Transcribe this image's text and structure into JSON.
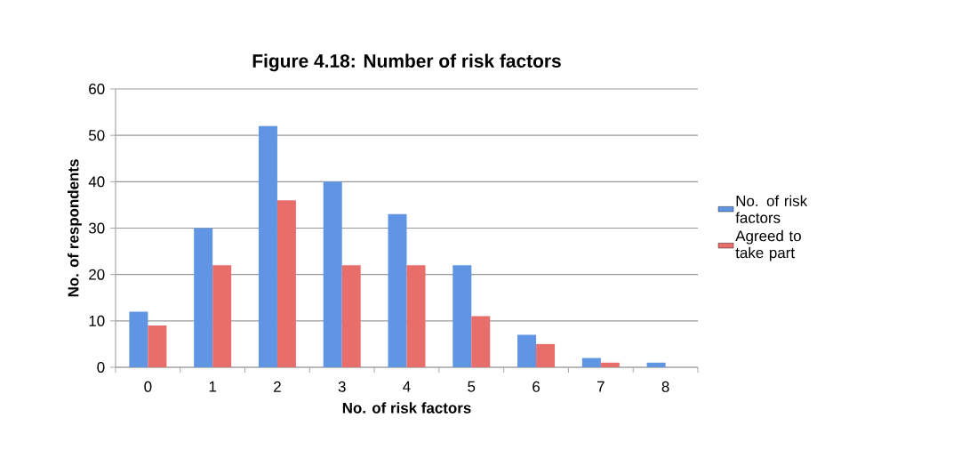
{
  "chart_data": {
    "type": "bar",
    "title": "Figure 4.18: Number of risk factors",
    "xlabel": "No. of risk factors",
    "ylabel": "No. of respondents",
    "categories": [
      "0",
      "1",
      "2",
      "3",
      "4",
      "5",
      "6",
      "7",
      "8"
    ],
    "series": [
      {
        "name": "No. of risk factors",
        "color": "#5f95e2",
        "values": [
          12,
          30,
          52,
          40,
          33,
          22,
          7,
          2,
          1
        ]
      },
      {
        "name": "Agreed to take part",
        "color": "#e86e6c",
        "values": [
          9,
          22,
          36,
          22,
          22,
          11,
          5,
          1,
          0
        ]
      }
    ],
    "ylim": [
      0,
      60
    ],
    "yticks": [
      0,
      10,
      20,
      30,
      40,
      50,
      60
    ],
    "grid": "y",
    "legend": "right"
  }
}
